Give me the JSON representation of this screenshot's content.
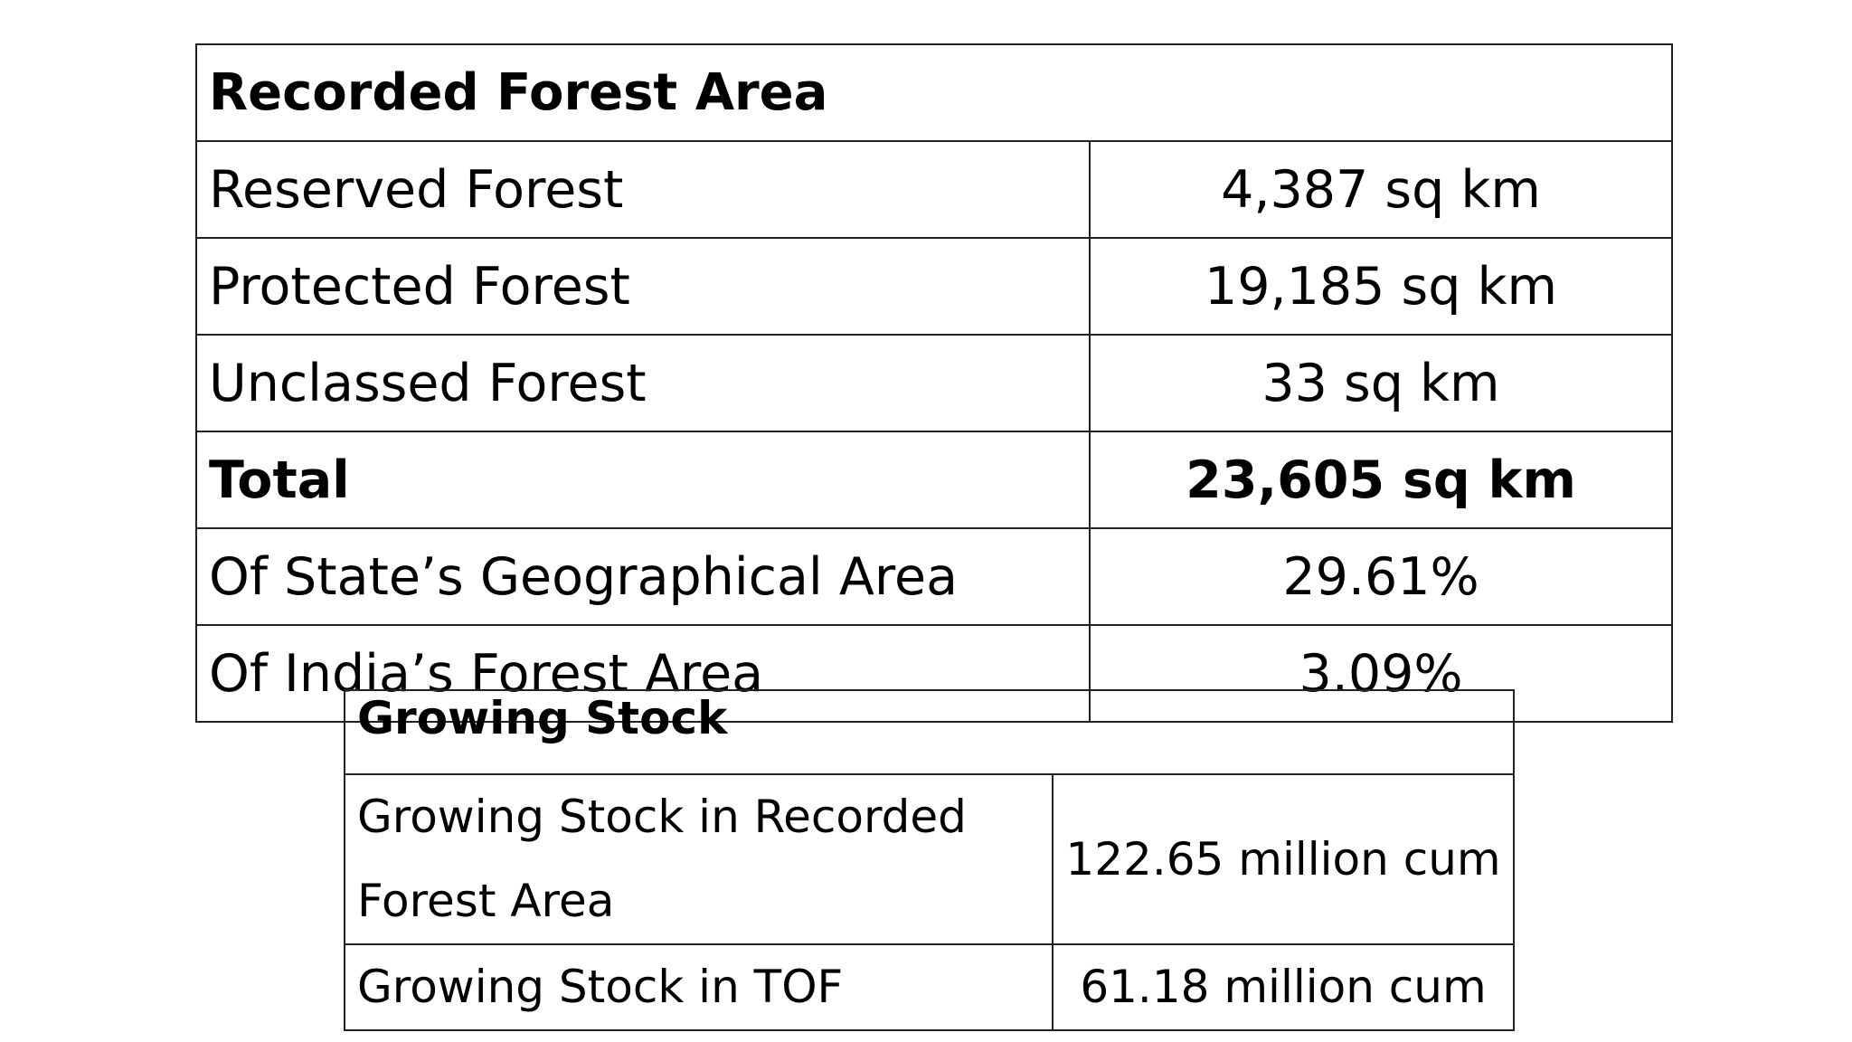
{
  "table1": {
    "title": "Recorded Forest Area",
    "rows": [
      [
        "Reserved Forest",
        "4,387 sq km"
      ],
      [
        "Protected Forest",
        "19,185 sq km"
      ],
      [
        "Unclassed Forest",
        "33 sq km"
      ],
      [
        "Total",
        "23,605 sq km"
      ],
      [
        "Of State’s Geographical Area",
        "29.61%"
      ],
      [
        "Of India’s Forest Area",
        "3.09%"
      ]
    ]
  },
  "table2": {
    "title": "Growing Stock",
    "rows": [
      [
        "Growing Stock in Recorded Forest Area",
        "122.65 million cum"
      ],
      [
        "Growing Stock in TOF",
        "61.18 million cum"
      ]
    ]
  }
}
